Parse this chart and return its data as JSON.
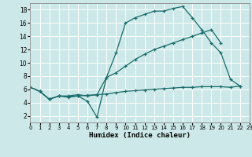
{
  "background_color": "#cce8e8",
  "grid_color": "#ffffff",
  "line_color": "#1a6b6b",
  "xlim": [
    0,
    23
  ],
  "ylim": [
    1,
    19
  ],
  "xlabel": "Humidex (Indice chaleur)",
  "xticks": [
    0,
    1,
    2,
    3,
    4,
    5,
    6,
    7,
    8,
    9,
    10,
    11,
    12,
    13,
    14,
    15,
    16,
    17,
    18,
    19,
    20,
    21,
    22,
    23
  ],
  "yticks": [
    2,
    4,
    6,
    8,
    10,
    12,
    14,
    16,
    18
  ],
  "line1": {
    "x": [
      0,
      1,
      2,
      3,
      4,
      5,
      6,
      7,
      8,
      9,
      10,
      11,
      12,
      13,
      14,
      15,
      16,
      17,
      18,
      19,
      20,
      21,
      22
    ],
    "y": [
      6.3,
      5.7,
      4.5,
      5.0,
      4.8,
      5.0,
      4.2,
      1.8,
      7.8,
      11.5,
      16.0,
      16.8,
      17.3,
      17.8,
      17.8,
      18.2,
      18.5,
      16.8,
      15.0,
      13.0,
      11.5,
      7.5,
      6.5
    ]
  },
  "line2": {
    "x": [
      0,
      1,
      2,
      3,
      4,
      5,
      6,
      7,
      8,
      9,
      10,
      11,
      12,
      13,
      14,
      15,
      16,
      17,
      18,
      19,
      20
    ],
    "y": [
      6.3,
      5.7,
      4.5,
      5.0,
      5.0,
      5.2,
      5.0,
      5.2,
      7.8,
      8.5,
      9.5,
      10.5,
      11.3,
      12.0,
      12.5,
      13.0,
      13.5,
      14.0,
      14.5,
      15.0,
      13.0
    ]
  },
  "line3": {
    "x": [
      0,
      1,
      2,
      3,
      4,
      5,
      6,
      7,
      8,
      9,
      10,
      11,
      12,
      13,
      14,
      15,
      16,
      17,
      18,
      19,
      20,
      21,
      22
    ],
    "y": [
      6.3,
      5.7,
      4.5,
      5.0,
      4.9,
      5.0,
      5.1,
      5.2,
      5.3,
      5.5,
      5.7,
      5.8,
      5.9,
      6.0,
      6.1,
      6.2,
      6.3,
      6.3,
      6.4,
      6.4,
      6.4,
      6.3,
      6.5
    ]
  },
  "title_fontsize": 7,
  "xlabel_fontsize": 6.5,
  "tick_fontsize_x": 5,
  "tick_fontsize_y": 5.5
}
